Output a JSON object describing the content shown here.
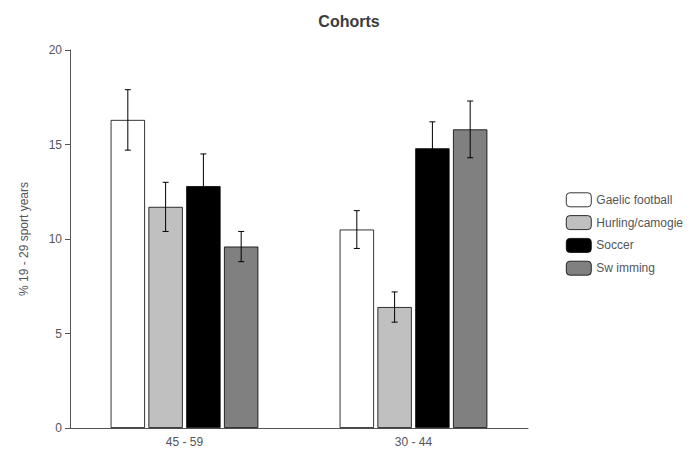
{
  "chart_data": {
    "type": "bar",
    "title": "Cohorts",
    "ylabel": "% 19 - 29 sport years",
    "categories": [
      "45 - 59",
      "30 - 44"
    ],
    "series": [
      {
        "name": "Gaelic football",
        "color": "#ffffff",
        "values": [
          16.3,
          10.5
        ],
        "errors": [
          1.6,
          1.0
        ]
      },
      {
        "name": "Hurling/camogie",
        "color": "#c0c0c0",
        "values": [
          11.7,
          6.4
        ],
        "errors": [
          1.3,
          0.8
        ]
      },
      {
        "name": "Soccer",
        "color": "#000000",
        "values": [
          12.8,
          14.8
        ],
        "errors": [
          1.7,
          1.4
        ]
      },
      {
        "name": "Sw imming",
        "color": "#808080",
        "values": [
          9.6,
          15.8
        ],
        "errors": [
          0.8,
          1.5
        ]
      }
    ],
    "ylim": [
      0,
      20
    ],
    "yticks": [
      0,
      5,
      10,
      15,
      20
    ],
    "grid": false,
    "legend": "right"
  }
}
